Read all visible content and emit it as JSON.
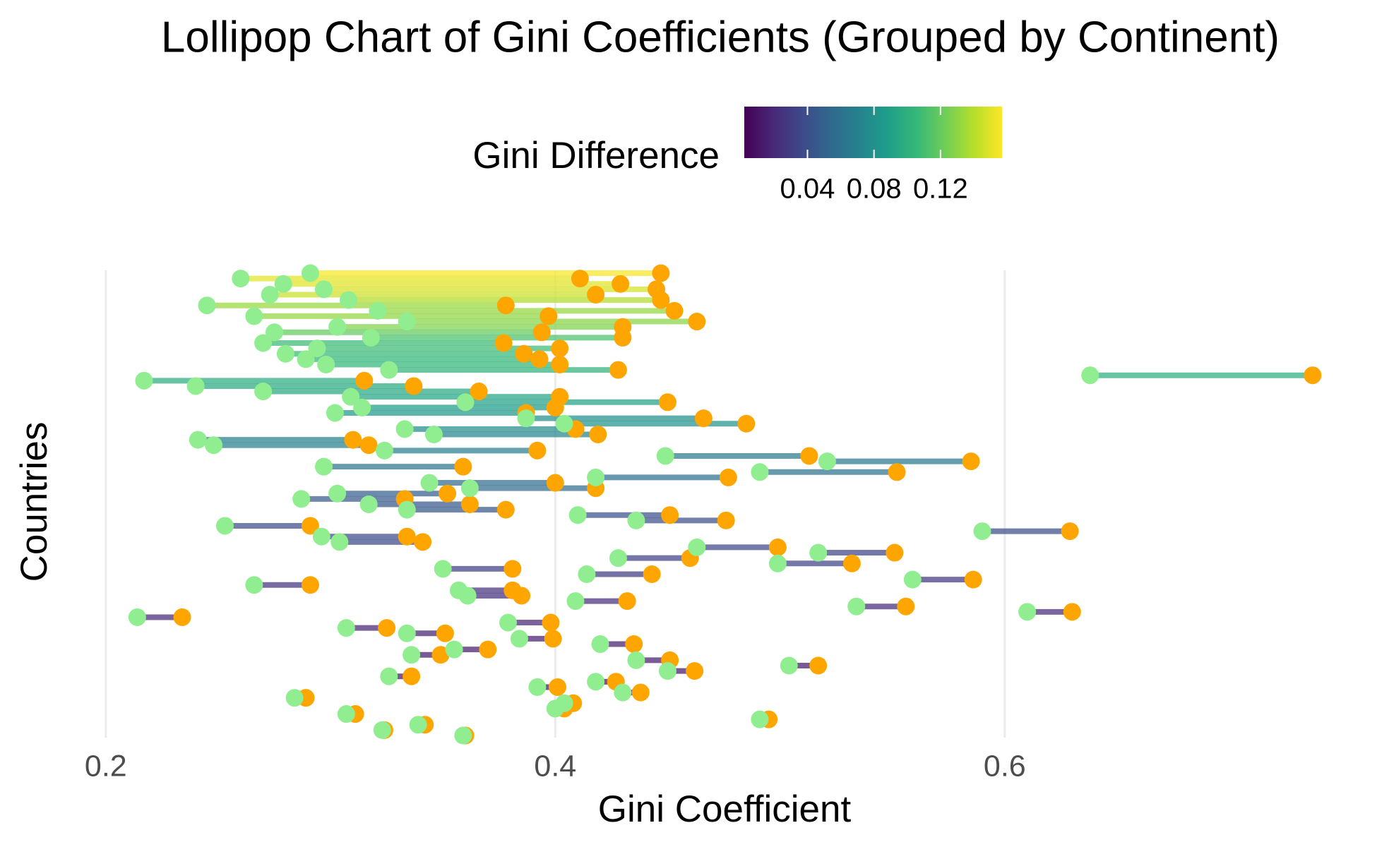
{
  "chart_data": {
    "type": "lollipop",
    "title": "Lollipop Chart of Gini Coefficients (Grouped by Continent)",
    "xlabel": "Gini Coefficient",
    "ylabel": "Countries",
    "categories": [
      null,
      null,
      null,
      null,
      null,
      null,
      null,
      null,
      null,
      null,
      null,
      null,
      null,
      null,
      null,
      null,
      null,
      null,
      null,
      null,
      null,
      null,
      null,
      null,
      null,
      null,
      null,
      null,
      null,
      null,
      null,
      null,
      null,
      null,
      null,
      null,
      null,
      null,
      null,
      null,
      null,
      null,
      null,
      null,
      null,
      null,
      null,
      null,
      null,
      null,
      null,
      null,
      null,
      null,
      null,
      null,
      null,
      null,
      null,
      null,
      null,
      null,
      null,
      null,
      null,
      null,
      null,
      null,
      null,
      null,
      null,
      null,
      null,
      null,
      null,
      null,
      null,
      null,
      null,
      null,
      null,
      null,
      null,
      null,
      null,
      null,
      null
    ],
    "series": [
      {
        "color": "#90ee90",
        "values": [
          0.291,
          0.26,
          0.279,
          0.297,
          0.273,
          0.308,
          0.245,
          0.321,
          0.266,
          0.334,
          0.303,
          0.275,
          0.318,
          0.27,
          0.294,
          0.28,
          0.289,
          0.298,
          0.326,
          0.638,
          0.217,
          0.24,
          0.27,
          0.309,
          0.36,
          0.314,
          0.302,
          0.387,
          0.404,
          0.333,
          0.346,
          0.241,
          0.248,
          0.324,
          0.449,
          0.521,
          0.297,
          0.491,
          0.418,
          0.344,
          0.362,
          0.303,
          0.287,
          0.317,
          0.334,
          0.41,
          0.436,
          0.253,
          0.59,
          0.296,
          0.304,
          0.463,
          0.517,
          0.428,
          0.499,
          0.35,
          0.414,
          0.559,
          0.266,
          0.357,
          0.361,
          0.409,
          0.534,
          0.61,
          0.214,
          0.379,
          0.307,
          0.334,
          0.384,
          0.42,
          0.355,
          0.336,
          0.436,
          0.504,
          0.45,
          0.326,
          0.418,
          0.392,
          0.43,
          0.284,
          0.404,
          0.4,
          0.307,
          0.491,
          0.339,
          0.323,
          0.359
        ]
      },
      {
        "color": "#ffa500",
        "values": [
          0.447,
          0.411,
          0.429,
          0.445,
          0.418,
          0.447,
          0.378,
          0.453,
          0.397,
          0.463,
          0.43,
          0.394,
          0.43,
          0.377,
          0.402,
          0.386,
          0.393,
          0.402,
          0.428,
          0.737,
          0.315,
          0.337,
          0.366,
          0.402,
          0.45,
          0.4,
          0.387,
          0.466,
          0.485,
          0.409,
          0.419,
          0.31,
          0.317,
          0.392,
          0.513,
          0.585,
          0.359,
          0.552,
          0.477,
          0.4,
          0.418,
          0.352,
          0.333,
          0.362,
          0.378,
          0.451,
          0.476,
          0.291,
          0.629,
          0.334,
          0.341,
          0.499,
          0.551,
          0.46,
          0.532,
          0.381,
          0.443,
          0.586,
          0.291,
          0.381,
          0.385,
          0.432,
          0.556,
          0.63,
          0.234,
          0.398,
          0.325,
          0.351,
          0.399,
          0.435,
          0.37,
          0.349,
          0.451,
          0.517,
          0.462,
          0.336,
          0.427,
          0.401,
          0.438,
          0.289,
          0.408,
          0.404,
          0.311,
          0.495,
          0.342,
          0.324,
          0.36
        ]
      }
    ],
    "xlim": [
      0.19,
      0.76
    ],
    "xticks": [
      0.2,
      0.4,
      0.6
    ],
    "grid": true,
    "colorbar": {
      "title": "Gini Difference",
      "colormap": "viridis",
      "lim": [
        0.002,
        0.157
      ],
      "ticks": [
        0.04,
        0.08,
        0.12
      ],
      "position": "top"
    }
  }
}
